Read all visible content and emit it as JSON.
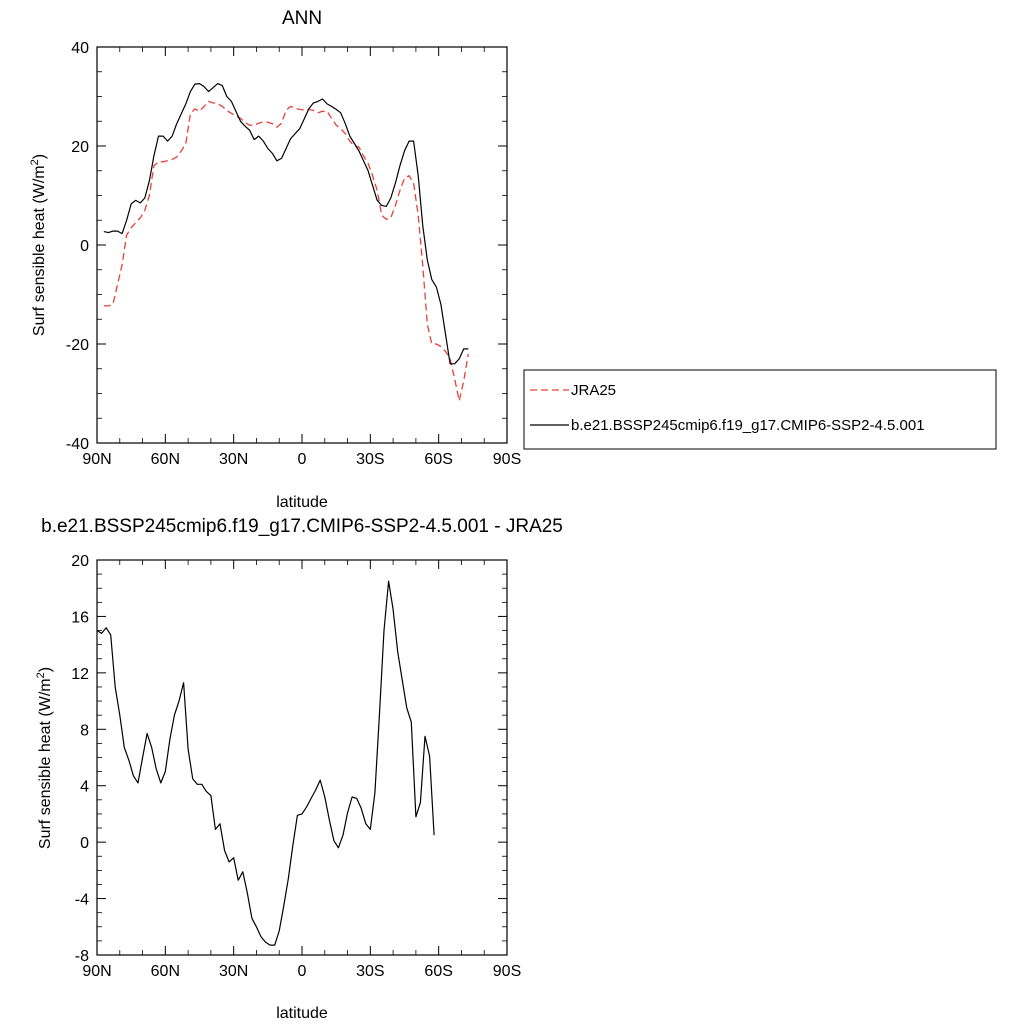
{
  "chart_data": [
    {
      "type": "line",
      "title": "ANN",
      "xlabel": "latitude",
      "ylabel": "Surf sensible heat (W/m",
      "ylabel_sup": "2",
      "ylabel_close": ")",
      "xlim": [
        90,
        -90
      ],
      "ylim": [
        -40,
        40
      ],
      "xticks": [
        {
          "value": 90,
          "label": "90N"
        },
        {
          "value": 60,
          "label": "60N"
        },
        {
          "value": 30,
          "label": "30N"
        },
        {
          "value": 0,
          "label": "0"
        },
        {
          "value": -30,
          "label": "30S"
        },
        {
          "value": -60,
          "label": "60S"
        },
        {
          "value": -90,
          "label": "90S"
        }
      ],
      "yticks": [
        {
          "value": 40,
          "label": "40"
        },
        {
          "value": 20,
          "label": "20"
        },
        {
          "value": 0,
          "label": "0"
        },
        {
          "value": -20,
          "label": "-20"
        },
        {
          "value": -40,
          "label": "-40"
        }
      ],
      "legend_position": "right",
      "series": [
        {
          "name": "JRA25",
          "color": "#e8403a",
          "style": "dashed",
          "points": [
            [
              87,
              -12.3
            ],
            [
              85,
              -12.3
            ],
            [
              83,
              -12
            ],
            [
              81,
              -8
            ],
            [
              79,
              -4
            ],
            [
              77,
              2
            ],
            [
              75,
              3.5
            ],
            [
              73,
              4.5
            ],
            [
              71,
              5.5
            ],
            [
              69,
              7
            ],
            [
              67,
              10
            ],
            [
              65,
              16
            ],
            [
              63,
              16.8
            ],
            [
              61,
              16.8
            ],
            [
              59,
              17
            ],
            [
              57,
              17.3
            ],
            [
              55,
              17.8
            ],
            [
              53,
              19
            ],
            [
              51,
              20.5
            ],
            [
              49,
              26.5
            ],
            [
              47,
              27.5
            ],
            [
              45,
              27
            ],
            [
              43,
              28
            ],
            [
              41,
              29
            ],
            [
              39,
              28.7
            ],
            [
              37,
              28.5
            ],
            [
              35,
              28
            ],
            [
              33,
              27.2
            ],
            [
              31,
              26.6
            ],
            [
              29,
              26
            ],
            [
              27,
              25.6
            ],
            [
              25,
              24.7
            ],
            [
              23,
              24.2
            ],
            [
              21,
              24.2
            ],
            [
              19,
              24.6
            ],
            [
              17,
              24.9
            ],
            [
              15,
              24.8
            ],
            [
              13,
              24.5
            ],
            [
              11,
              23.8
            ],
            [
              9,
              24.6
            ],
            [
              7,
              27.2
            ],
            [
              5,
              28
            ],
            [
              3,
              27.6
            ],
            [
              1,
              27.4
            ],
            [
              -1,
              27.3
            ],
            [
              -3,
              27.4
            ],
            [
              -5,
              27.2
            ],
            [
              -7,
              26.7
            ],
            [
              -9,
              27
            ],
            [
              -11,
              27
            ],
            [
              -13,
              25.6
            ],
            [
              -15,
              24.2
            ],
            [
              -17,
              23.5
            ],
            [
              -19,
              22.5
            ],
            [
              -21,
              21
            ],
            [
              -23,
              20
            ],
            [
              -25,
              19.8
            ],
            [
              -27,
              18
            ],
            [
              -29,
              16.5
            ],
            [
              -31,
              14
            ],
            [
              -33,
              11
            ],
            [
              -35,
              6
            ],
            [
              -37,
              5.2
            ],
            [
              -39,
              5.5
            ],
            [
              -41,
              8
            ],
            [
              -43,
              11
            ],
            [
              -45,
              13.5
            ],
            [
              -47,
              14
            ],
            [
              -49,
              12.5
            ],
            [
              -51,
              6
            ],
            [
              -53,
              -4
            ],
            [
              -55,
              -16
            ],
            [
              -57,
              -20
            ],
            [
              -59,
              -20
            ],
            [
              -61,
              -20.5
            ],
            [
              -63,
              -21.5
            ],
            [
              -65,
              -23
            ],
            [
              -67,
              -27
            ],
            [
              -69,
              -31.5
            ],
            [
              -71,
              -27.5
            ],
            [
              -73,
              -22
            ]
          ]
        },
        {
          "name": "b.e21.BSSP245cmip6.f19_g17.CMIP6-SSP2-4.5.001",
          "color": "#000000",
          "style": "solid",
          "points": [
            [
              87,
              2.7
            ],
            [
              85,
              2.5
            ],
            [
              83,
              2.8
            ],
            [
              81,
              2.8
            ],
            [
              79,
              2.3
            ],
            [
              77,
              5
            ],
            [
              75,
              8.3
            ],
            [
              73,
              9
            ],
            [
              71,
              8.5
            ],
            [
              69,
              9.5
            ],
            [
              67,
              13
            ],
            [
              65,
              18
            ],
            [
              63,
              22
            ],
            [
              61,
              22
            ],
            [
              59,
              21
            ],
            [
              57,
              22
            ],
            [
              55,
              24.5
            ],
            [
              53,
              26.5
            ],
            [
              51,
              28.5
            ],
            [
              49,
              31
            ],
            [
              47,
              32.5
            ],
            [
              45,
              32.6
            ],
            [
              43,
              32
            ],
            [
              41,
              31
            ],
            [
              39,
              31.8
            ],
            [
              37,
              32.6
            ],
            [
              35,
              32.2
            ],
            [
              33,
              30
            ],
            [
              31,
              29
            ],
            [
              29,
              27
            ],
            [
              27,
              25
            ],
            [
              25,
              24
            ],
            [
              23,
              23.2
            ],
            [
              21,
              21.3
            ],
            [
              19,
              22
            ],
            [
              17,
              21
            ],
            [
              15,
              19.5
            ],
            [
              13,
              18.5
            ],
            [
              11,
              17
            ],
            [
              9,
              17.5
            ],
            [
              7,
              19.5
            ],
            [
              5,
              21.5
            ],
            [
              3,
              22.5
            ],
            [
              1,
              23.5
            ],
            [
              -1,
              25.5
            ],
            [
              -3,
              27.5
            ],
            [
              -5,
              28.7
            ],
            [
              -7,
              29
            ],
            [
              -9,
              29.5
            ],
            [
              -11,
              28.5
            ],
            [
              -13,
              28
            ],
            [
              -15,
              27.4
            ],
            [
              -17,
              26.7
            ],
            [
              -19,
              24.5
            ],
            [
              -21,
              22
            ],
            [
              -23,
              20.5
            ],
            [
              -25,
              19
            ],
            [
              -27,
              17
            ],
            [
              -29,
              15
            ],
            [
              -31,
              12
            ],
            [
              -33,
              9
            ],
            [
              -35,
              8
            ],
            [
              -37,
              7.8
            ],
            [
              -39,
              9.5
            ],
            [
              -41,
              12.5
            ],
            [
              -43,
              16
            ],
            [
              -45,
              19
            ],
            [
              -47,
              21
            ],
            [
              -49,
              21
            ],
            [
              -51,
              14
            ],
            [
              -53,
              4
            ],
            [
              -55,
              -3
            ],
            [
              -57,
              -7
            ],
            [
              -59,
              -8.5
            ],
            [
              -61,
              -12
            ],
            [
              -63,
              -18
            ],
            [
              -65,
              -24
            ],
            [
              -67,
              -24
            ],
            [
              -69,
              -23
            ],
            [
              -71,
              -21
            ],
            [
              -73,
              -21
            ]
          ]
        }
      ]
    },
    {
      "type": "line",
      "title": "b.e21.BSSP245cmip6.f19_g17.CMIP6-SSP2-4.5.001 - JRA25",
      "xlabel": "latitude",
      "ylabel": "Surf sensible heat (W/m",
      "ylabel_sup": "2",
      "ylabel_close": ")",
      "xlim": [
        90,
        -90
      ],
      "ylim": [
        -8,
        20
      ],
      "xticks": [
        {
          "value": 90,
          "label": "90N"
        },
        {
          "value": 60,
          "label": "60N"
        },
        {
          "value": 30,
          "label": "30N"
        },
        {
          "value": 0,
          "label": "0"
        },
        {
          "value": -30,
          "label": "30S"
        },
        {
          "value": -60,
          "label": "60S"
        },
        {
          "value": -90,
          "label": "90S"
        }
      ],
      "yticks": [
        {
          "value": 20,
          "label": "20"
        },
        {
          "value": 16,
          "label": "16"
        },
        {
          "value": 12,
          "label": "12"
        },
        {
          "value": 8,
          "label": "8"
        },
        {
          "value": 4,
          "label": "4"
        },
        {
          "value": 0,
          "label": "0"
        },
        {
          "value": -4,
          "label": "-4"
        },
        {
          "value": -8,
          "label": "-8"
        }
      ],
      "series": [
        {
          "color": "#000000",
          "style": "solid",
          "points": [
            [
              90,
              15
            ],
            [
              88,
              14.8
            ],
            [
              86,
              15.2
            ],
            [
              84,
              14.7
            ],
            [
              82,
              11
            ],
            [
              80,
              9
            ],
            [
              78,
              6.7
            ],
            [
              76,
              5.8
            ],
            [
              74,
              4.7
            ],
            [
              72,
              4.2
            ],
            [
              70,
              6
            ],
            [
              68,
              7.7
            ],
            [
              66,
              6.7
            ],
            [
              64,
              5.2
            ],
            [
              62,
              4.2
            ],
            [
              60,
              5
            ],
            [
              58,
              7.3
            ],
            [
              56,
              9
            ],
            [
              54,
              10
            ],
            [
              52,
              11.3
            ],
            [
              50,
              6.6
            ],
            [
              48,
              4.5
            ],
            [
              46,
              4.1
            ],
            [
              44,
              4.1
            ],
            [
              42,
              3.6
            ],
            [
              40,
              3.3
            ],
            [
              38,
              0.9
            ],
            [
              36,
              1.3
            ],
            [
              34,
              -0.6
            ],
            [
              32,
              -1.4
            ],
            [
              30,
              -1.1
            ],
            [
              28,
              -2.7
            ],
            [
              26,
              -2.1
            ],
            [
              24,
              -3.6
            ],
            [
              22,
              -5.4
            ],
            [
              20,
              -6
            ],
            [
              18,
              -6.7
            ],
            [
              16,
              -7.1
            ],
            [
              14,
              -7.3
            ],
            [
              12,
              -7.3
            ],
            [
              10,
              -6.3
            ],
            [
              8,
              -4.5
            ],
            [
              6,
              -2.6
            ],
            [
              4,
              -0.2
            ],
            [
              2,
              1.9
            ],
            [
              0,
              2
            ],
            [
              -2,
              2.5
            ],
            [
              -4,
              3.1
            ],
            [
              -6,
              3.7
            ],
            [
              -8,
              4.4
            ],
            [
              -10,
              3.2
            ],
            [
              -12,
              1.6
            ],
            [
              -14,
              0.1
            ],
            [
              -16,
              -0.4
            ],
            [
              -18,
              0.5
            ],
            [
              -20,
              2.1
            ],
            [
              -22,
              3.2
            ],
            [
              -24,
              3.1
            ],
            [
              -26,
              2.4
            ],
            [
              -28,
              1.3
            ],
            [
              -30,
              0.9
            ],
            [
              -32,
              3.5
            ],
            [
              -34,
              9
            ],
            [
              -36,
              15
            ],
            [
              -38,
              18.5
            ],
            [
              -40,
              16.5
            ],
            [
              -42,
              13.5
            ],
            [
              -44,
              11.5
            ],
            [
              -46,
              9.5
            ],
            [
              -48,
              8.5
            ],
            [
              -50,
              1.8
            ],
            [
              -52,
              2.8
            ],
            [
              -54,
              7.5
            ],
            [
              -56,
              6.1
            ],
            [
              -58,
              0.5
            ]
          ]
        }
      ]
    }
  ]
}
